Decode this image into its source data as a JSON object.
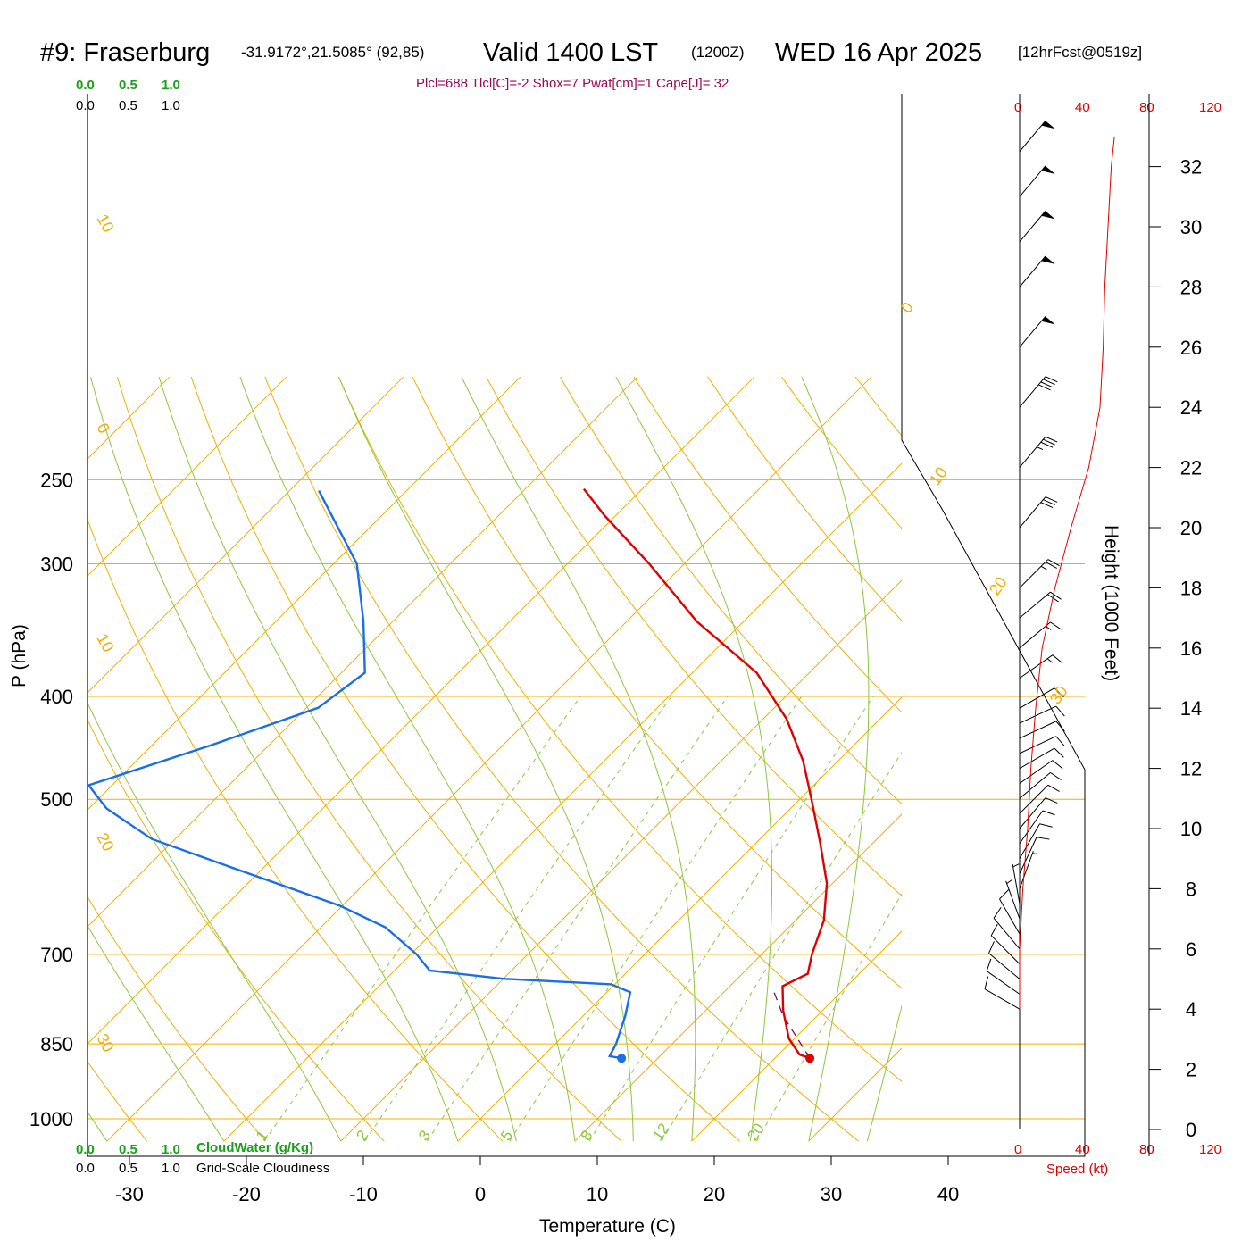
{
  "title": {
    "station": "#9: Fraserburg",
    "coords": "-31.9172°,21.5085° (92,85)",
    "valid": "Valid 1400 LST",
    "zulu": "(1200Z)",
    "date": "WED 16 Apr 2025",
    "forecast": "[12hrFcst@0519z]"
  },
  "indices": "Plcl=688 Tlcl[C]=-2 Shox=7 Pwat[cm]=1 Cape[J]= 32",
  "cloud_scale": {
    "ticks": [
      "0.0",
      "0.5",
      "1.0"
    ],
    "cloudwater_label": "CloudWater (g/Kg)",
    "cloudiness_label": "Grid-Scale Cloudiness"
  },
  "wind_speed_scale": {
    "ticks": [
      "0",
      "40",
      "80",
      "120"
    ],
    "label": "Speed (kt)"
  },
  "colors": {
    "temperature": "#e00000",
    "dewpoint": "#1a6ee6",
    "isotherm_adiabat": "#f0b000",
    "moist_adiabat": "#8cc83c",
    "mixing_ratio": "#8cc83c",
    "cloud_axis": "#1aa01a",
    "wind_speed": "#e00000",
    "parcel": "#7a1060"
  },
  "chart_data": {
    "type": "skew-t",
    "xlabel": "Temperature (C)",
    "ylabel": "P (hPa)",
    "right_ylabel": "Height (1000 Feet)",
    "x_ticks": [
      -30,
      -20,
      -10,
      0,
      10,
      20,
      30,
      40
    ],
    "pressure_ticks": [
      250,
      300,
      400,
      500,
      700,
      850,
      1000
    ],
    "height_ticks": [
      0,
      2,
      4,
      6,
      8,
      10,
      12,
      14,
      16,
      18,
      20,
      22,
      24,
      26,
      28,
      30,
      32
    ],
    "dry_adiabat_labels": [
      "30",
      "20",
      "10",
      "0",
      "-10",
      "-20",
      "-30"
    ],
    "mixing_ratio_labels": [
      "1",
      "2",
      "3",
      "5",
      "8",
      "12",
      "20"
    ],
    "temperature_profile": [
      {
        "p": 877,
        "t": 23.0
      },
      {
        "p": 870,
        "t": 21.8
      },
      {
        "p": 840,
        "t": 19.5
      },
      {
        "p": 790,
        "t": 16.6
      },
      {
        "p": 750,
        "t": 14.5
      },
      {
        "p": 730,
        "t": 15.6
      },
      {
        "p": 700,
        "t": 14.3
      },
      {
        "p": 650,
        "t": 12.4
      },
      {
        "p": 600,
        "t": 9.5
      },
      {
        "p": 550,
        "t": 5.5
      },
      {
        "p": 500,
        "t": 1.0
      },
      {
        "p": 460,
        "t": -3.0
      },
      {
        "p": 420,
        "t": -8.0
      },
      {
        "p": 380,
        "t": -14.5
      },
      {
        "p": 340,
        "t": -24.0
      },
      {
        "p": 300,
        "t": -33.0
      },
      {
        "p": 270,
        "t": -41.0
      },
      {
        "p": 255,
        "t": -45.0
      }
    ],
    "dewpoint_profile": [
      {
        "p": 877,
        "t": 6.9
      },
      {
        "p": 873,
        "t": 5.7
      },
      {
        "p": 850,
        "t": 5.2
      },
      {
        "p": 800,
        "t": 3.6
      },
      {
        "p": 760,
        "t": 2.0
      },
      {
        "p": 747,
        "t": -0.3
      },
      {
        "p": 738,
        "t": -10.0
      },
      {
        "p": 725,
        "t": -17.0
      },
      {
        "p": 700,
        "t": -19.5
      },
      {
        "p": 660,
        "t": -24.5
      },
      {
        "p": 630,
        "t": -30.2
      },
      {
        "p": 575,
        "t": -44.0
      },
      {
        "p": 545,
        "t": -52.0
      },
      {
        "p": 510,
        "t": -58.5
      },
      {
        "p": 485,
        "t": -62.0
      },
      {
        "p": 445,
        "t": -55.0
      },
      {
        "p": 410,
        "t": -49.0
      },
      {
        "p": 380,
        "t": -48.0
      },
      {
        "p": 340,
        "t": -52.5
      },
      {
        "p": 300,
        "t": -58.0
      },
      {
        "p": 256,
        "t": -67.5
      }
    ],
    "parcel_profile": [
      {
        "p": 877,
        "t": 23.0
      },
      {
        "p": 800,
        "t": 17.1
      },
      {
        "p": 760,
        "t": 14.3
      }
    ],
    "wind_speed_kt": [
      {
        "h": 4.0,
        "v": 0
      },
      {
        "h": 6.0,
        "v": 0
      },
      {
        "h": 8.0,
        "v": 2
      },
      {
        "h": 10.0,
        "v": 5
      },
      {
        "h": 12.0,
        "v": 7
      },
      {
        "h": 14.0,
        "v": 10
      },
      {
        "h": 16.0,
        "v": 14
      },
      {
        "h": 18.0,
        "v": 22
      },
      {
        "h": 20.0,
        "v": 32
      },
      {
        "h": 22.0,
        "v": 43
      },
      {
        "h": 24.0,
        "v": 50
      },
      {
        "h": 26.0,
        "v": 52
      },
      {
        "h": 28.0,
        "v": 53
      },
      {
        "h": 30.0,
        "v": 55
      },
      {
        "h": 32.0,
        "v": 57
      },
      {
        "h": 33.0,
        "v": 59
      }
    ],
    "wind_barbs": [
      {
        "h": 4.0,
        "dir": 300,
        "kt": 10
      },
      {
        "h": 4.5,
        "dir": 305,
        "kt": 10
      },
      {
        "h": 5.0,
        "dir": 310,
        "kt": 10
      },
      {
        "h": 5.5,
        "dir": 315,
        "kt": 10
      },
      {
        "h": 6.0,
        "dir": 320,
        "kt": 10
      },
      {
        "h": 6.5,
        "dir": 330,
        "kt": 10
      },
      {
        "h": 7.0,
        "dir": 340,
        "kt": 5
      },
      {
        "h": 7.5,
        "dir": 350,
        "kt": 5
      },
      {
        "h": 8.0,
        "dir": 20,
        "kt": 5
      },
      {
        "h": 8.5,
        "dir": 25,
        "kt": 10
      },
      {
        "h": 9.0,
        "dir": 30,
        "kt": 10
      },
      {
        "h": 9.5,
        "dir": 35,
        "kt": 10
      },
      {
        "h": 10.0,
        "dir": 40,
        "kt": 10
      },
      {
        "h": 10.5,
        "dir": 45,
        "kt": 10
      },
      {
        "h": 11.0,
        "dir": 50,
        "kt": 10
      },
      {
        "h": 11.5,
        "dir": 55,
        "kt": 10
      },
      {
        "h": 12.0,
        "dir": 60,
        "kt": 10
      },
      {
        "h": 12.5,
        "dir": 65,
        "kt": 10
      },
      {
        "h": 13.0,
        "dir": 65,
        "kt": 10
      },
      {
        "h": 13.5,
        "dir": 65,
        "kt": 10
      },
      {
        "h": 14.0,
        "dir": 60,
        "kt": 10
      },
      {
        "h": 15.0,
        "dir": 55,
        "kt": 15
      },
      {
        "h": 16.0,
        "dir": 50,
        "kt": 15
      },
      {
        "h": 17.0,
        "dir": 50,
        "kt": 20
      },
      {
        "h": 18.0,
        "dir": 45,
        "kt": 25
      },
      {
        "h": 20.0,
        "dir": 40,
        "kt": 30
      },
      {
        "h": 22.0,
        "dir": 40,
        "kt": 35
      },
      {
        "h": 24.0,
        "dir": 40,
        "kt": 40
      },
      {
        "h": 26.0,
        "dir": 40,
        "kt": 50
      },
      {
        "h": 28.0,
        "dir": 40,
        "kt": 50
      },
      {
        "h": 29.5,
        "dir": 40,
        "kt": 50
      },
      {
        "h": 31.0,
        "dir": 40,
        "kt": 50
      },
      {
        "h": 32.5,
        "dir": 40,
        "kt": 50
      }
    ]
  }
}
